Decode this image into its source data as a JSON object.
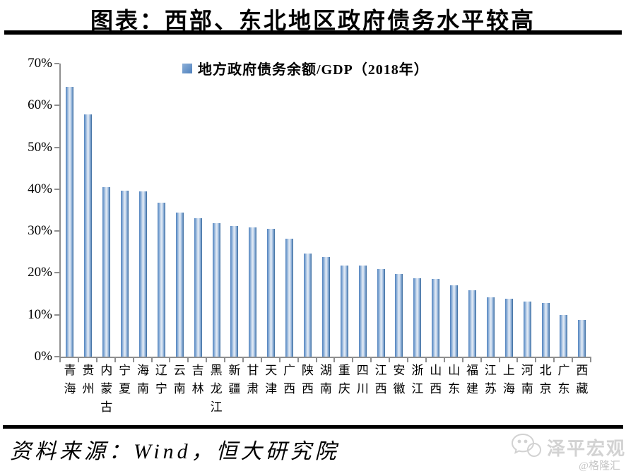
{
  "page": {
    "title": "图表：西部、东北地区政府债务水平较高",
    "source": "资料来源：Wind，恒大研究院",
    "watermark_name": "泽平宏观",
    "watermark_handle": "@格隆汇"
  },
  "chart_data": {
    "type": "bar",
    "title": "图表：西部、东北地区政府债务水平较高",
    "legend": "地方政府债务余额/GDP（2018年）",
    "legend_position": "top-center",
    "categories": [
      "青海",
      "贵州",
      "内蒙古",
      "宁夏",
      "海南",
      "辽宁",
      "云南",
      "吉林",
      "黑龙江",
      "新疆",
      "甘肃",
      "天津",
      "广西",
      "陕西",
      "湖南",
      "重庆",
      "四川",
      "江西",
      "安徽",
      "浙江",
      "山西",
      "山东",
      "福建",
      "江苏",
      "上海",
      "河南",
      "北京",
      "广东",
      "西藏"
    ],
    "values": [
      64.4,
      57.9,
      40.5,
      39.7,
      39.4,
      36.8,
      34.4,
      33.0,
      31.9,
      31.2,
      30.9,
      30.6,
      28.1,
      24.7,
      23.8,
      21.8,
      21.7,
      21.0,
      19.7,
      18.7,
      18.6,
      17.1,
      15.8,
      14.2,
      13.9,
      13.2,
      12.9,
      10.0,
      8.7
    ],
    "ylabel": "",
    "xlabel": "",
    "ylim": [
      0,
      70
    ],
    "ytick_labels": [
      "70%",
      "60%",
      "50%",
      "40%",
      "30%",
      "20%",
      "10%",
      "0%"
    ],
    "grid": false,
    "bar_color": "#4f81bd",
    "axis_color": "#8f8f8f"
  }
}
